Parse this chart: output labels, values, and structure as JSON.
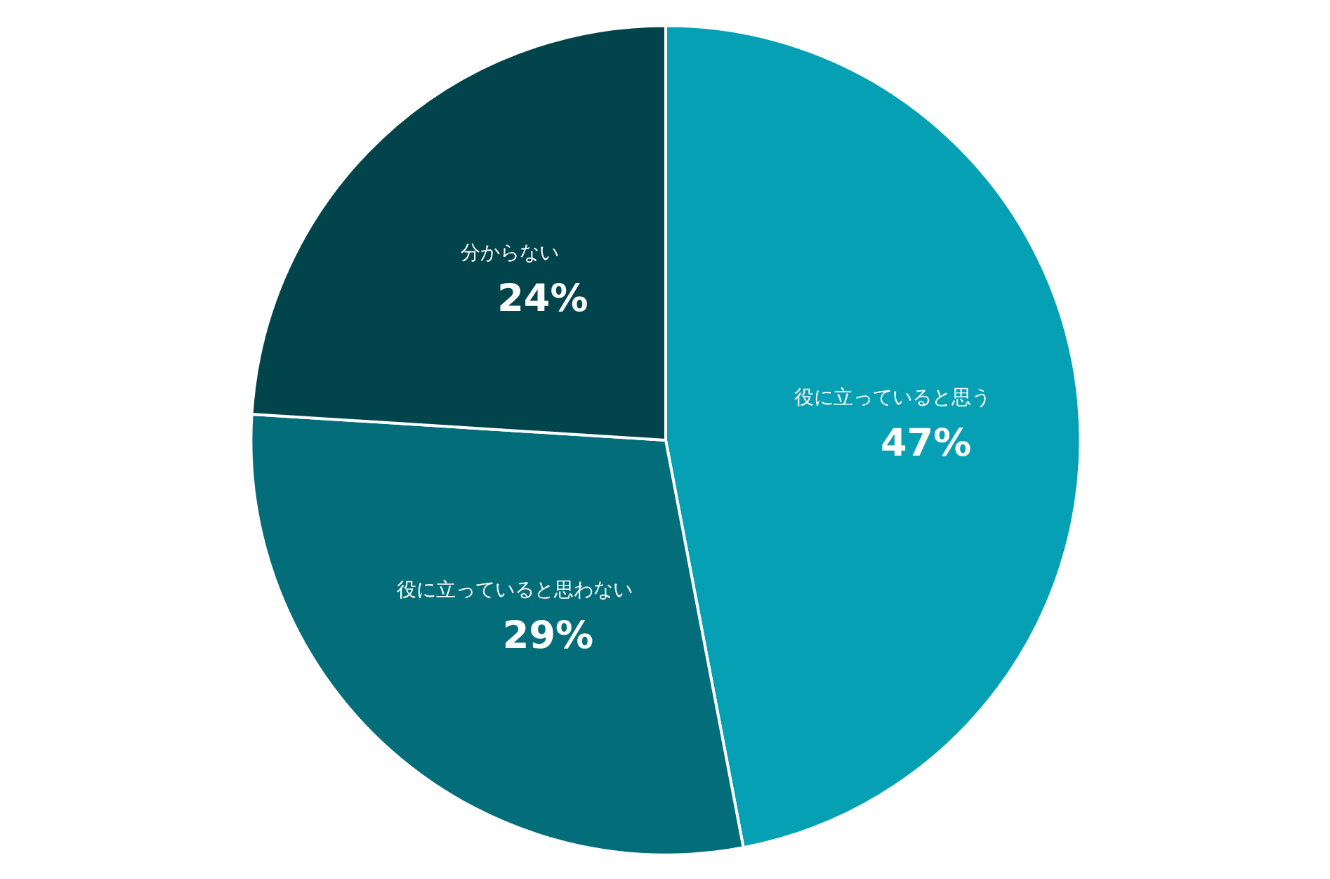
{
  "chart_data": {
    "type": "pie",
    "categories": [
      "役に立っていると思う",
      "役に立っていると思わない",
      "分からない"
    ],
    "values": [
      47,
      29,
      24
    ],
    "colors": [
      "#05a0b3",
      "#036e79",
      "#02444b"
    ],
    "value_labels": [
      "47%",
      "29%",
      "24%"
    ]
  }
}
